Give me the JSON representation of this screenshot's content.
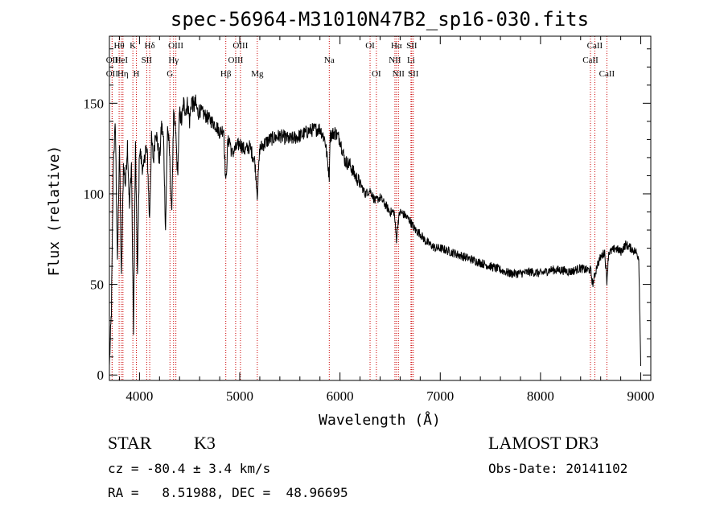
{
  "chart_data": {
    "type": "line",
    "title": "spec-56964-M31010N47B2_sp16-030.fits",
    "xlabel": "Wavelength (Å)",
    "ylabel": "Flux (relative)",
    "xlim": [
      3700,
      9100
    ],
    "ylim": [
      -3,
      187
    ],
    "xticks": [
      4000,
      5000,
      6000,
      7000,
      8000,
      9000
    ],
    "yticks": [
      0,
      50,
      100,
      150
    ],
    "series": [
      {
        "name": "spectrum",
        "x": [
          3700,
          3720,
          3740,
          3760,
          3780,
          3800,
          3820,
          3840,
          3860,
          3880,
          3900,
          3920,
          3940,
          3960,
          3980,
          4000,
          4020,
          4040,
          4060,
          4080,
          4100,
          4120,
          4140,
          4160,
          4180,
          4200,
          4220,
          4240,
          4260,
          4280,
          4300,
          4320,
          4340,
          4360,
          4380,
          4400,
          4420,
          4440,
          4460,
          4480,
          4500,
          4520,
          4540,
          4560,
          4580,
          4600,
          4640,
          4680,
          4720,
          4760,
          4800,
          4840,
          4861,
          4880,
          4900,
          4920,
          4960,
          5000,
          5050,
          5100,
          5150,
          5175,
          5200,
          5250,
          5300,
          5400,
          5500,
          5600,
          5700,
          5800,
          5850,
          5893,
          5900,
          5950,
          6000,
          6050,
          6100,
          6150,
          6200,
          6250,
          6300,
          6350,
          6400,
          6450,
          6500,
          6540,
          6563,
          6580,
          6600,
          6650,
          6700,
          6750,
          6800,
          6850,
          6900,
          6950,
          7000,
          7100,
          7200,
          7300,
          7400,
          7500,
          7600,
          7700,
          7800,
          7900,
          8000,
          8100,
          8200,
          8300,
          8400,
          8450,
          8500,
          8520,
          8542,
          8560,
          8600,
          8640,
          8662,
          8680,
          8700,
          8750,
          8800,
          8850,
          8900,
          8950,
          8980,
          9000
        ],
        "y": [
          5,
          35,
          120,
          138,
          60,
          128,
          52,
          116,
          105,
          128,
          92,
          118,
          22,
          126,
          55,
          125,
          118,
          112,
          126,
          120,
          85,
          130,
          118,
          136,
          128,
          118,
          138,
          130,
          80,
          138,
          122,
          88,
          142,
          135,
          110,
          145,
          140,
          150,
          146,
          150,
          140,
          152,
          148,
          150,
          145,
          146,
          144,
          142,
          140,
          138,
          134,
          136,
          105,
          128,
          130,
          122,
          125,
          128,
          124,
          126,
          118,
          100,
          125,
          128,
          130,
          132,
          130,
          132,
          135,
          136,
          130,
          110,
          132,
          134,
          130,
          118,
          116,
          110,
          106,
          100,
          102,
          96,
          98,
          94,
          90,
          90,
          75,
          85,
          90,
          88,
          85,
          80,
          78,
          74,
          72,
          70,
          70,
          68,
          66,
          64,
          62,
          60,
          58,
          56,
          56,
          57,
          56,
          58,
          58,
          57,
          59,
          58,
          58,
          50,
          55,
          60,
          65,
          68,
          52,
          68,
          68,
          70,
          68,
          72,
          70,
          68,
          65,
          5
        ]
      }
    ],
    "annotations": [
      {
        "label": "OII",
        "wavelength": 3727,
        "row": 2
      },
      {
        "label": "OII",
        "wavelength": 3727,
        "row": 3
      },
      {
        "label": "Hθ",
        "wavelength": 3797,
        "row": 1
      },
      {
        "label": "HeI",
        "wavelength": 3819,
        "row": 2
      },
      {
        "label": "Hη",
        "wavelength": 3835,
        "row": 3
      },
      {
        "label": "K",
        "wavelength": 3934,
        "row": 1
      },
      {
        "label": "H",
        "wavelength": 3969,
        "row": 3
      },
      {
        "label": "SII",
        "wavelength": 4072,
        "row": 2
      },
      {
        "label": "Hδ",
        "wavelength": 4102,
        "row": 1
      },
      {
        "label": "G",
        "wavelength": 4304,
        "row": 3
      },
      {
        "label": "Hγ",
        "wavelength": 4340,
        "row": 2
      },
      {
        "label": "OIII",
        "wavelength": 4363,
        "row": 1
      },
      {
        "label": "Hβ",
        "wavelength": 4861,
        "row": 3
      },
      {
        "label": "OIII",
        "wavelength": 4959,
        "row": 2
      },
      {
        "label": "OIII",
        "wavelength": 5007,
        "row": 1
      },
      {
        "label": "Mg",
        "wavelength": 5175,
        "row": 3
      },
      {
        "label": "Na",
        "wavelength": 5893,
        "row": 2
      },
      {
        "label": "OI",
        "wavelength": 6300,
        "row": 1
      },
      {
        "label": "OI",
        "wavelength": 6363,
        "row": 3
      },
      {
        "label": "NII",
        "wavelength": 6548,
        "row": 2
      },
      {
        "label": "Hα",
        "wavelength": 6563,
        "row": 1
      },
      {
        "label": "NII",
        "wavelength": 6583,
        "row": 3
      },
      {
        "label": "SII",
        "wavelength": 6716,
        "row": 1
      },
      {
        "label": "Li",
        "wavelength": 6708,
        "row": 2
      },
      {
        "label": "SII",
        "wavelength": 6731,
        "row": 3
      },
      {
        "label": "CaII",
        "wavelength": 8498,
        "row": 2
      },
      {
        "label": "CaII",
        "wavelength": 8542,
        "row": 1
      },
      {
        "label": "CaII",
        "wavelength": 8662,
        "row": 3
      }
    ]
  },
  "info": {
    "class": "STAR",
    "subclass": "K3",
    "survey": "LAMOST DR3",
    "cz": "cz = -80.4 ± 3.4 km/s",
    "obs_date": "Obs-Date: 20141102",
    "coords": "RA =   8.51988, DEC =  48.96695"
  },
  "colors": {
    "spectrum": "#000000",
    "line_marker": "#cc0000",
    "axis": "#000000"
  }
}
